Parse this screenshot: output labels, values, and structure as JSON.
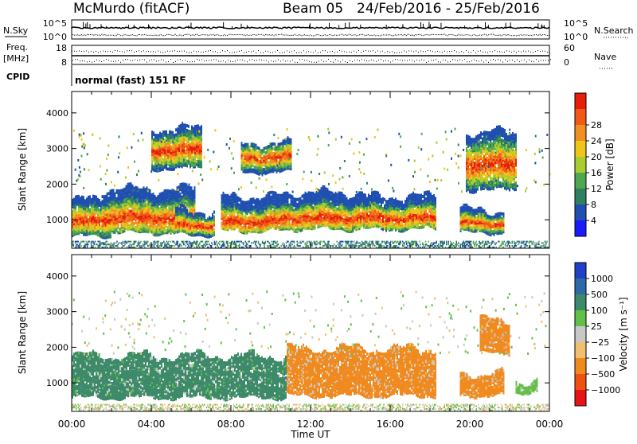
{
  "header": {
    "station": "McMurdo (fitACF)",
    "beam": "Beam 05",
    "date_range": "24/Feb/2016 - 25/Feb/2016",
    "left_labels": {
      "nsky": "N.Sky",
      "freq_1": "Freq.",
      "freq_2": "[MHz]",
      "cpid": "CPID"
    },
    "right_labels": {
      "nsearch": "N.Search",
      "nave": "Nave"
    },
    "cpid_text": "normal (fast) 151 RF",
    "noise_ticks_left": [
      "10^5",
      "10^0"
    ],
    "noise_ticks_right": [
      "10^5",
      "10^0"
    ],
    "freq_ticks": [
      "18",
      "8"
    ],
    "nave_ticks": [
      "60",
      "0"
    ]
  },
  "chart_data": [
    {
      "type": "heatmap",
      "name": "Power",
      "ylabel": "Slant Range [km]",
      "xlabel": "",
      "ylim": [
        200,
        4600
      ],
      "yticks": [
        "1000",
        "2000",
        "3000",
        "4000"
      ],
      "colorbar_label": "Power [dB]",
      "colorbar_ticks": [
        "4",
        "8",
        "12",
        "16",
        "20",
        "24",
        "28"
      ],
      "colorbar_colors": [
        "#1a1aff",
        "#1f4fb0",
        "#2f8060",
        "#4fa84f",
        "#a9cc2e",
        "#f0c51a",
        "#f09020",
        "#f05a14",
        "#e61e0a"
      ],
      "time_blocks": [
        {
          "t0": 0.0,
          "t1": 2.0,
          "r0": 600,
          "r1": 1600,
          "peak": 1000
        },
        {
          "t0": 1.5,
          "t1": 6.2,
          "r0": 700,
          "r1": 1900,
          "peak": 1100
        },
        {
          "t0": 5.2,
          "t1": 7.2,
          "r0": 650,
          "r1": 1300,
          "peak": 900
        },
        {
          "t0": 7.5,
          "t1": 10.8,
          "r0": 750,
          "r1": 1700,
          "peak": 1000
        },
        {
          "t0": 10.5,
          "t1": 14.5,
          "r0": 800,
          "r1": 1800,
          "peak": 1100
        },
        {
          "t0": 14.0,
          "t1": 18.3,
          "r0": 800,
          "r1": 1700,
          "peak": 1100
        },
        {
          "t0": 19.5,
          "t1": 21.7,
          "r0": 700,
          "r1": 1300,
          "peak": 950
        },
        {
          "t0": 4.0,
          "t1": 6.5,
          "r0": 2500,
          "r1": 3600,
          "peak": 3000
        },
        {
          "t0": 8.5,
          "t1": 11.0,
          "r0": 2400,
          "r1": 3200,
          "peak": 2800
        },
        {
          "t0": 19.8,
          "t1": 22.3,
          "r0": 1900,
          "r1": 3500,
          "peak": 2600
        }
      ]
    },
    {
      "type": "heatmap",
      "name": "Velocity",
      "ylabel": "Slant Range [km]",
      "xlabel": "Time UT",
      "ylim": [
        200,
        4600
      ],
      "yticks": [
        "1000",
        "2000",
        "3000",
        "4000"
      ],
      "xticks": [
        "00:00",
        "04:00",
        "08:00",
        "12:00",
        "16:00",
        "20:00",
        "00:00"
      ],
      "xlim_hours": [
        0,
        24
      ],
      "colorbar_label": "Velocity [m s⁻¹]",
      "colorbar_ticks": [
        "1000",
        "500",
        "100",
        "25",
        "−25",
        "−100",
        "−500",
        "−1000"
      ],
      "colorbar_colors": [
        "#2040c8",
        "#2e6aa8",
        "#3d8a6a",
        "#62c048",
        "#c8c8c8",
        "#f0c070",
        "#f08a1e",
        "#f05012",
        "#e61414"
      ],
      "time_blocks": [
        {
          "t0": 0.0,
          "t1": 10.8,
          "r0": 650,
          "r1": 1800,
          "sign": "toward",
          "color": "#3d8a6a"
        },
        {
          "t0": 10.8,
          "t1": 18.3,
          "r0": 700,
          "r1": 2000,
          "sign": "away",
          "color": "#f08a1e"
        },
        {
          "t0": 19.5,
          "t1": 21.7,
          "r0": 700,
          "r1": 1300,
          "sign": "away",
          "color": "#f08a1e"
        },
        {
          "t0": 22.3,
          "t1": 23.4,
          "r0": 800,
          "r1": 1100,
          "sign": "toward",
          "color": "#62c048"
        },
        {
          "t0": 20.5,
          "t1": 22.0,
          "r0": 1900,
          "r1": 2800,
          "sign": "away",
          "color": "#f08a1e"
        }
      ]
    }
  ]
}
